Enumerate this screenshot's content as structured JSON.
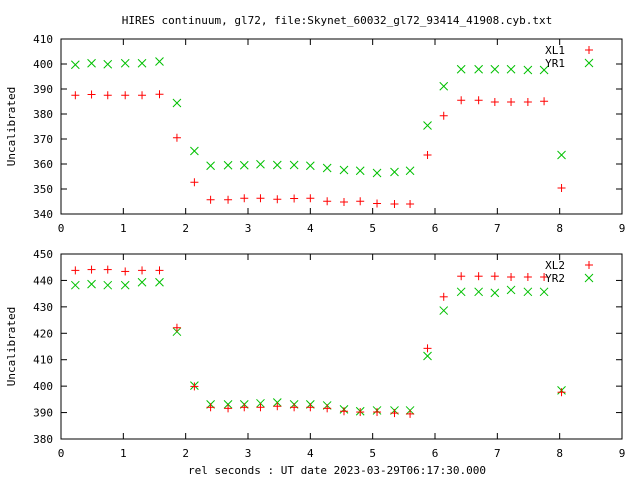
{
  "title": "HIRES continuum, gl72, file:Skynet_60032_gl72_93414_41908.cyb.txt",
  "xlabel": "rel seconds : UT date 2023-03-29T06:17:30.000",
  "colors": {
    "red_series": "#ff0000",
    "green_series": "#00c000",
    "axes": "#000000",
    "background": "#ffffff"
  },
  "chart_data": [
    {
      "type": "scatter",
      "ylabel": "Uncalibrated",
      "xlim": [
        0,
        9
      ],
      "ylim": [
        340,
        410
      ],
      "xticks": [
        "0",
        "1",
        "2",
        "3",
        "4",
        "5",
        "6",
        "7",
        "8",
        "9"
      ],
      "yticks": [
        "340",
        "350",
        "360",
        "370",
        "380",
        "390",
        "400",
        "410"
      ],
      "legend_position": "top-right",
      "series": [
        {
          "name": "XL1",
          "marker": "plus",
          "color": "#ff0000",
          "x": [
            0.23,
            0.49,
            0.75,
            1.03,
            1.3,
            1.58,
            1.86,
            2.14,
            2.4,
            2.68,
            2.94,
            3.2,
            3.47,
            3.74,
            4.0,
            4.27,
            4.54,
            4.8,
            5.07,
            5.35,
            5.6,
            5.88,
            6.14,
            6.42,
            6.7,
            6.96,
            7.22,
            7.49,
            7.75,
            8.03
          ],
          "y": [
            387.5,
            387.8,
            387.5,
            387.5,
            387.5,
            387.9,
            370.5,
            352.7,
            345.7,
            345.7,
            346.3,
            346.3,
            345.9,
            346.2,
            346.3,
            345.1,
            344.8,
            345.1,
            344.2,
            344.0,
            344.0,
            363.6,
            379.3,
            385.5,
            385.5,
            384.8,
            384.8,
            384.8,
            385.1,
            350.4
          ]
        },
        {
          "name": "YR1",
          "marker": "cross",
          "color": "#00c000",
          "x": [
            0.23,
            0.49,
            0.75,
            1.03,
            1.3,
            1.58,
            1.86,
            2.14,
            2.4,
            2.68,
            2.94,
            3.2,
            3.47,
            3.74,
            4.0,
            4.27,
            4.54,
            4.8,
            5.07,
            5.35,
            5.6,
            5.88,
            6.14,
            6.42,
            6.7,
            6.96,
            7.22,
            7.49,
            7.75,
            8.03
          ],
          "y": [
            399.7,
            400.3,
            399.9,
            400.3,
            400.3,
            401.0,
            384.4,
            365.2,
            359.3,
            359.5,
            359.5,
            359.9,
            359.6,
            359.6,
            359.3,
            358.4,
            357.6,
            357.3,
            356.4,
            356.8,
            357.3,
            375.4,
            391.1,
            397.9,
            397.9,
            397.9,
            397.9,
            397.6,
            397.6,
            363.6
          ]
        }
      ]
    },
    {
      "type": "scatter",
      "ylabel": "Uncalibrated",
      "xlim": [
        0,
        9
      ],
      "ylim": [
        380,
        450
      ],
      "xticks": [
        "0",
        "1",
        "2",
        "3",
        "4",
        "5",
        "6",
        "7",
        "8",
        "9"
      ],
      "yticks": [
        "380",
        "390",
        "400",
        "410",
        "420",
        "430",
        "440",
        "450"
      ],
      "legend_position": "top-right",
      "series": [
        {
          "name": "XL2",
          "marker": "plus",
          "color": "#ff0000",
          "x": [
            0.23,
            0.49,
            0.75,
            1.03,
            1.3,
            1.58,
            1.86,
            2.14,
            2.4,
            2.68,
            2.94,
            3.2,
            3.47,
            3.74,
            4.0,
            4.27,
            4.54,
            4.8,
            5.07,
            5.35,
            5.6,
            5.88,
            6.14,
            6.42,
            6.7,
            6.96,
            7.22,
            7.49,
            7.75,
            8.03
          ],
          "y": [
            443.8,
            444.1,
            444.1,
            443.4,
            443.8,
            443.8,
            422.1,
            399.9,
            392.0,
            391.6,
            392.0,
            392.0,
            392.4,
            392.0,
            392.0,
            391.6,
            390.5,
            390.2,
            390.2,
            389.8,
            389.5,
            414.3,
            433.8,
            441.6,
            441.6,
            441.6,
            441.3,
            441.3,
            441.3,
            397.7
          ]
        },
        {
          "name": "YR2",
          "marker": "cross",
          "color": "#00c000",
          "x": [
            0.23,
            0.49,
            0.75,
            1.03,
            1.3,
            1.58,
            1.86,
            2.14,
            2.4,
            2.68,
            2.94,
            3.2,
            3.47,
            3.74,
            4.0,
            4.27,
            4.54,
            4.8,
            5.07,
            5.35,
            5.6,
            5.88,
            6.14,
            6.42,
            6.7,
            6.96,
            7.22,
            7.49,
            7.75,
            8.03
          ],
          "y": [
            438.2,
            438.6,
            438.2,
            438.2,
            439.3,
            439.3,
            420.6,
            400.2,
            393.1,
            393.1,
            393.1,
            393.5,
            393.8,
            393.1,
            393.1,
            392.7,
            391.2,
            390.5,
            390.8,
            390.8,
            390.8,
            411.4,
            428.6,
            435.7,
            435.7,
            435.3,
            436.4,
            435.7,
            435.7,
            398.4
          ]
        }
      ]
    }
  ]
}
